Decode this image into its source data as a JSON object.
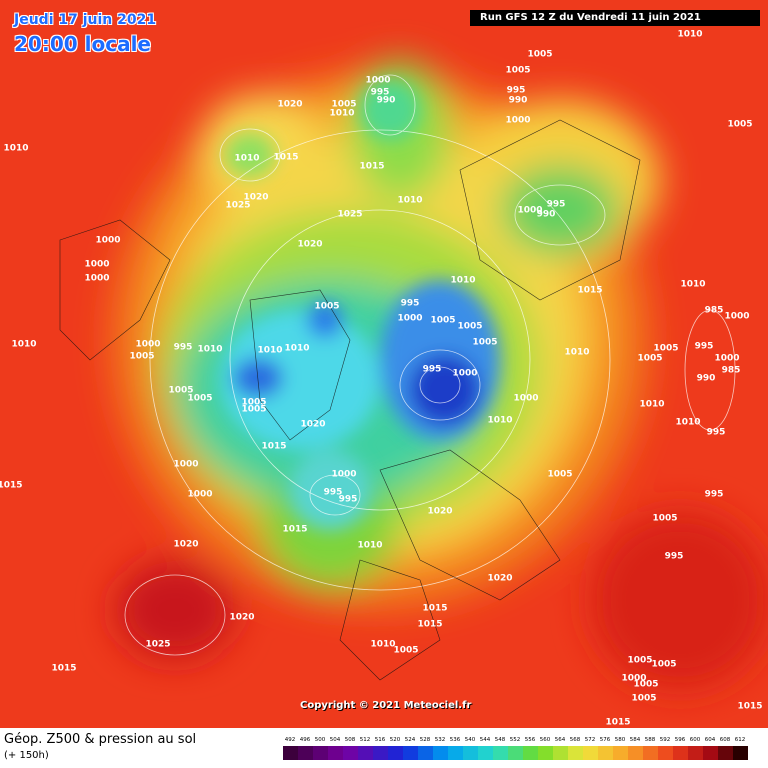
{
  "header": {
    "date": "Jeudi 17 juin 2021",
    "time": "20:00 locale",
    "run": "Run GFS 12 Z du Vendredi 11 juin 2021"
  },
  "copyright": "Copyright © 2021 Meteociel.fr",
  "legend": {
    "title": "Géop. Z500 & pression au sol",
    "subtitle": "(+ 150h)",
    "levels": [
      492,
      496,
      500,
      504,
      508,
      512,
      516,
      520,
      524,
      528,
      532,
      536,
      540,
      544,
      548,
      552,
      556,
      560,
      564,
      568,
      572,
      576,
      580,
      584,
      588,
      592,
      596,
      600,
      604,
      608,
      612
    ]
  },
  "isobars": [
    1005,
    1010,
    1005,
    995,
    990,
    1000,
    995,
    990,
    1020,
    1005,
    1010,
    1000,
    1005,
    1010,
    1010,
    1015,
    1015,
    1020,
    1025,
    1010,
    1025,
    1000,
    995,
    990,
    1020,
    1000,
    1000,
    1000,
    1010,
    1015,
    1010,
    1005,
    995,
    1000,
    1005,
    1005,
    985,
    1000,
    1010,
    1000,
    995,
    1010,
    1005,
    1010,
    1010,
    1005,
    1010,
    1005,
    995,
    1005,
    995,
    1000,
    1000,
    985,
    990,
    1005,
    1005,
    1000,
    1010,
    1005,
    1005,
    1010,
    1020,
    1010,
    995,
    1015,
    1000,
    1000,
    995,
    995,
    1005,
    995,
    1000,
    1015,
    1020,
    1015,
    1010,
    1005,
    1020,
    995,
    1020,
    1015,
    1015,
    1020,
    1025,
    1010,
    1005,
    1015,
    1005,
    1005,
    1000,
    1005,
    1005,
    1015,
    1015
  ]
}
